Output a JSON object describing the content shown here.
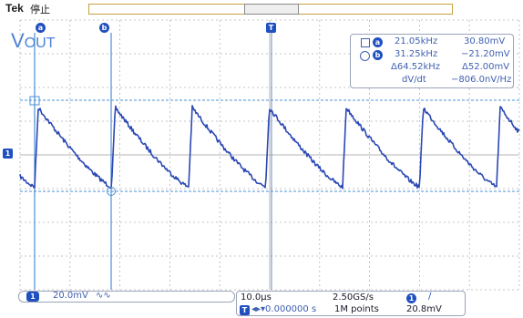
{
  "header": {
    "brand": "Tek",
    "run_state": "停止"
  },
  "signal_label": {
    "main": "V",
    "sub": "OUT"
  },
  "cursor_markers": {
    "a": "a",
    "b": "b",
    "trigger": "T",
    "channel": "1"
  },
  "cursor_readout": {
    "a_freq": "21.05kHz",
    "a_volt": "30.80mV",
    "b_freq": "31.25kHz",
    "b_volt": "−21.20mV",
    "delta_freq": "Δ64.52kHz",
    "delta_volt": "Δ52.00mV",
    "dvdt_label": "dV/dt",
    "dvdt_value": "−806.0nV/Hz"
  },
  "channel_status": {
    "channel_num": "1",
    "scale": "20.0mV",
    "bw_symbol": "∿∿"
  },
  "acquisition": {
    "time_div": "10.0μs",
    "sample_rate": "2.50GS/s",
    "record_length": "1M points",
    "trigger_position": "◂▸▾0.000000 s",
    "trigger_channel": "1",
    "trigger_slope": "∕",
    "trigger_level": "20.8mV"
  },
  "colors": {
    "trace": "#2a48b5",
    "cursor": "#4a90d9",
    "grid": "#b4b4b4",
    "accent": "#2050c0"
  }
}
